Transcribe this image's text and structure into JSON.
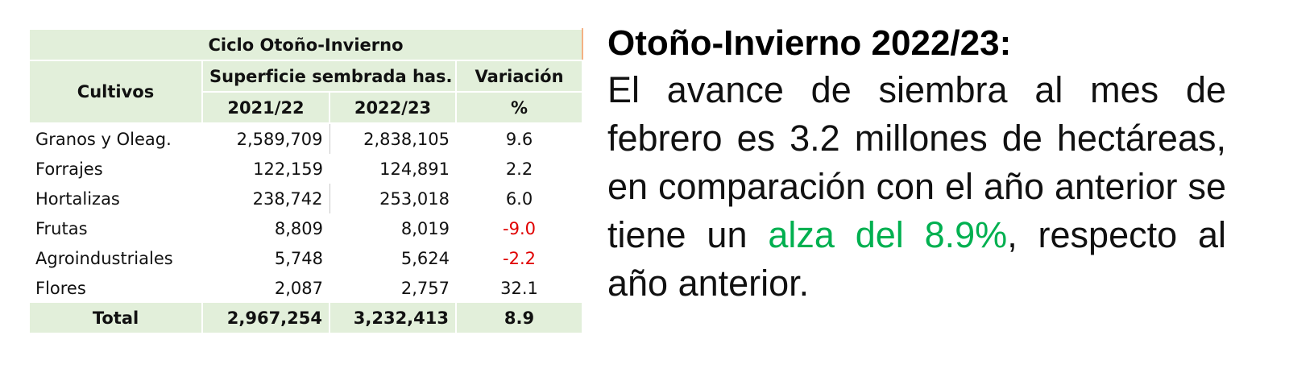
{
  "table": {
    "title": "Ciclo Otoño-Invierno",
    "headers": {
      "crop": "Cultivos",
      "area": "Superficie sembrada has.",
      "variation": "Variación",
      "year1": "2021/22",
      "year2": "2022/23",
      "unit": "%"
    },
    "rows": [
      [
        "Granos y Oleag.",
        "2,589,709",
        "2,838,105",
        "9.6"
      ],
      [
        "Forrajes",
        "122,159",
        "124,891",
        "2.2"
      ],
      [
        "Hortalizas",
        "238,742",
        "253,018",
        "6.0"
      ],
      [
        "Frutas",
        "8,809",
        "8,019",
        "-9.0"
      ],
      [
        "Agroindustriales",
        "5,748",
        "5,624",
        "-2.2"
      ],
      [
        "Flores",
        "2,087",
        "2,757",
        "32.1"
      ]
    ],
    "total": [
      "Total",
      "2,967,254",
      "3,232,413",
      "8.9"
    ]
  },
  "text": {
    "title": "Otoño-Invierno 2022/23:",
    "body": "El avance de siembra al mes de febrero es 3.2 millones de hectáreas, en comparación con el año anterior se tiene un ",
    "highlight": "alza del 8.9%",
    "ending": ", respecto al año anterior."
  }
}
